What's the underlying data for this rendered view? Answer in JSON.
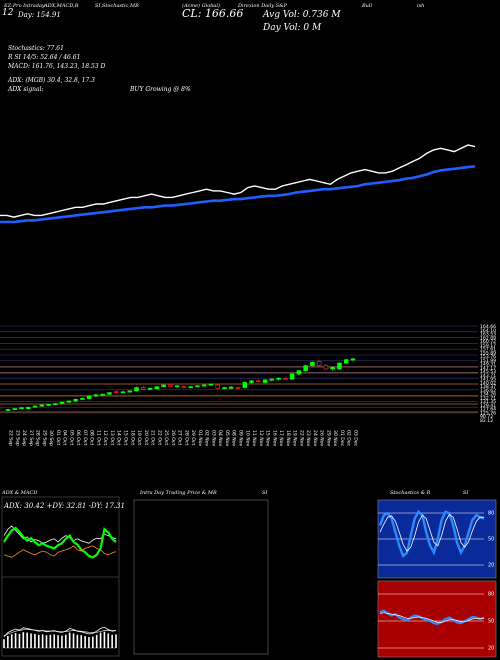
{
  "header": {
    "labels": [
      "EZ-Pro Intraday",
      "ADX,MACD,R",
      "SI,Stochastic,MR",
      "(Acme) Global)",
      "Direxion Daily S&P",
      "Bull",
      "ish"
    ],
    "day_range": "Day: 154.91",
    "close": "CL: 166.66",
    "avg_vol": "Avg Vol: 0.736  M",
    "day_vol": "Day Vol: 0   M",
    "pct": "12"
  },
  "indicators": {
    "stochastics": "Stochastics: 77.61",
    "rsi": "R          SI 14/5: 52.64 / 46.61",
    "macd": "MACD: 161.76, 143.23, 18.53 D",
    "adx": "ADX:                         (MGB) 30.4,  32.8,  17.3",
    "adx_signal_label": "ADX  signal:",
    "adx_signal": "BUY Growing @ 8%"
  },
  "colors": {
    "bull": "#00ff00",
    "bear": "#ff2020",
    "ma": "#1f5fff",
    "resistance": "#b36b28",
    "support": "#3a3a8a"
  },
  "chart_data": [
    {
      "type": "line",
      "name": "price-with-moving-average",
      "series": [
        {
          "name": "Price",
          "values": [
            107,
            107,
            106,
            107,
            108,
            107,
            107,
            108,
            109,
            110,
            111,
            112,
            112,
            113,
            114,
            114,
            115,
            116,
            117,
            118,
            118,
            119,
            120,
            119,
            118,
            118,
            119,
            120,
            121,
            122,
            123,
            122,
            122,
            121,
            120,
            121,
            124,
            125,
            124,
            123,
            123,
            125,
            126,
            127,
            128,
            129,
            128,
            127,
            126,
            129,
            131,
            133,
            134,
            135,
            134,
            133,
            133,
            134,
            136,
            138,
            140,
            142,
            145,
            147,
            148,
            147,
            146,
            148,
            150,
            149
          ]
        },
        {
          "name": "Moving Average",
          "values": [
            103.0,
            103.0,
            103.0,
            103.5,
            104.0,
            104.0,
            104.5,
            105.0,
            105.5,
            106.0,
            106.5,
            107.0,
            107.5,
            108.0,
            108.5,
            109.0,
            109.5,
            110.0,
            110.5,
            111.0,
            111.5,
            112.0,
            112.0,
            112.5,
            113.0,
            113.0,
            113.5,
            114.0,
            114.5,
            115.0,
            115.5,
            116.0,
            116.0,
            116.5,
            117.0,
            117.0,
            117.5,
            118.0,
            118.5,
            119.0,
            119.0,
            119.5,
            120.0,
            121.0,
            121.5,
            122.0,
            122.5,
            123.0,
            123.0,
            123.5,
            124.0,
            124.5,
            125.0,
            126.0,
            126.5,
            127.0,
            127.5,
            128.0,
            128.5,
            129.5,
            130.0,
            131.0,
            132.0,
            133.5,
            134.5,
            135.0,
            135.5,
            136.0,
            136.5,
            137.0
          ]
        }
      ]
    },
    {
      "type": "candlestick",
      "name": "daily-candles",
      "ylim": [
        125,
        176
      ],
      "x": [
        "22 Sep",
        "23 Sep",
        "24 Sep",
        "27 Sep",
        "28 Sep",
        "29 Sep",
        "30 Sep",
        "01 Oct",
        "04 Oct",
        "05 Oct",
        "06 Oct",
        "07 Oct",
        "08 Oct",
        "11 Oct",
        "12 Oct",
        "13 Oct",
        "14 Oct",
        "15 Oct",
        "18 Oct",
        "19 Oct",
        "20 Oct",
        "21 Oct",
        "22 Oct",
        "25 Oct",
        "26 Oct",
        "27 Oct",
        "28 Oct",
        "29 Oct",
        "01 Nov",
        "02 Nov",
        "03 Nov",
        "04 Nov",
        "05 Nov",
        "08 Nov",
        "09 Nov",
        "10 Nov",
        "11 Nov",
        "12 Nov",
        "15 Nov",
        "16 Nov",
        "17 Nov",
        "18 Nov",
        "19 Nov",
        "22 Nov",
        "23 Nov",
        "24 Nov",
        "26 Nov",
        "29 Nov",
        "30 Nov",
        "01 Dec",
        "02 Dec",
        "03 Dec"
      ],
      "tick_labels": [
        "164.66",
        "164.10",
        "163.53",
        "162.09",
        "160.72",
        "159.17",
        "157.61",
        "155.89",
        "153.76",
        "151.99",
        "149.31",
        "147.17",
        "145.53",
        "143.71",
        "141.95",
        "140.02",
        "138.37",
        "136.62",
        "134.26",
        "132.71",
        "131.35",
        "129.41",
        "127.64",
        "125.76",
        "90.72",
        "82.12"
      ],
      "candles": [
        [
          126.0,
          127.0,
          125.5,
          126.5
        ],
        [
          126.5,
          127.5,
          126.0,
          127.0
        ],
        [
          127.0,
          128.0,
          126.5,
          127.5
        ],
        [
          127.0,
          128.0,
          126.5,
          127.8
        ],
        [
          127.8,
          129.0,
          127.5,
          128.5
        ],
        [
          128.5,
          129.5,
          128.0,
          129.2
        ],
        [
          129.0,
          130.0,
          128.5,
          129.5
        ],
        [
          129.5,
          130.5,
          129.0,
          130.0
        ],
        [
          130.0,
          131.0,
          129.5,
          130.8
        ],
        [
          130.8,
          132.0,
          130.5,
          131.5
        ],
        [
          131.5,
          133.0,
          131.0,
          132.5
        ],
        [
          132.5,
          133.5,
          132.0,
          133.0
        ],
        [
          133.0,
          135.0,
          132.8,
          134.5
        ],
        [
          134.5,
          136.0,
          134.0,
          135.2
        ],
        [
          135.0,
          136.0,
          134.5,
          135.5
        ],
        [
          135.5,
          137.0,
          135.0,
          136.5
        ],
        [
          137.0,
          138.0,
          136.0,
          136.5
        ],
        [
          136.5,
          137.5,
          136.0,
          137.0
        ],
        [
          136.8,
          138.0,
          136.5,
          137.5
        ],
        [
          137.5,
          140.0,
          137.0,
          139.5
        ],
        [
          139.5,
          140.5,
          138.0,
          138.5
        ],
        [
          138.5,
          139.5,
          138.0,
          139.0
        ],
        [
          138.8,
          140.5,
          138.5,
          140.0
        ],
        [
          140.0,
          141.5,
          139.5,
          141.0
        ],
        [
          141.0,
          141.8,
          140.0,
          140.2
        ],
        [
          140.2,
          141.0,
          139.5,
          140.5
        ],
        [
          140.0,
          140.8,
          139.0,
          139.5
        ],
        [
          139.5,
          140.5,
          139.0,
          140.0
        ],
        [
          140.0,
          141.0,
          139.5,
          140.5
        ],
        [
          140.5,
          141.5,
          140.0,
          141.0
        ],
        [
          141.0,
          142.0,
          140.5,
          141.5
        ],
        [
          141.0,
          142.0,
          138.5,
          139.0
        ],
        [
          139.0,
          140.0,
          138.5,
          139.5
        ],
        [
          139.0,
          140.5,
          138.5,
          139.8
        ],
        [
          139.5,
          140.0,
          138.0,
          139.0
        ],
        [
          139.5,
          143.0,
          139.0,
          142.5
        ],
        [
          142.5,
          144.0,
          142.0,
          143.5
        ],
        [
          143.5,
          144.5,
          142.5,
          143.0
        ],
        [
          142.5,
          144.5,
          142.0,
          144.0
        ],
        [
          144.0,
          145.0,
          143.0,
          144.5
        ],
        [
          144.5,
          145.5,
          143.5,
          145.0
        ],
        [
          145.0,
          146.0,
          144.0,
          144.5
        ],
        [
          144.5,
          148.0,
          144.0,
          147.5
        ],
        [
          147.5,
          150.0,
          147.0,
          149.5
        ],
        [
          149.5,
          153.0,
          149.0,
          152.5
        ],
        [
          152.5,
          155.0,
          152.0,
          154.5
        ],
        [
          155.0,
          156.0,
          152.0,
          152.5
        ],
        [
          152.5,
          153.5,
          150.0,
          150.5
        ],
        [
          150.5,
          152.0,
          149.5,
          151.5
        ],
        [
          150.5,
          154.5,
          150.0,
          154.0
        ],
        [
          154.0,
          156.5,
          153.5,
          156.0
        ],
        [
          156.0,
          157.0,
          155.0,
          156.5
        ]
      ]
    },
    {
      "type": "line",
      "name": "adx-macd",
      "title": "ADX  & MACD",
      "label": "ADX: 30.42  +DY: 32.81 -DY: 17.31",
      "series": [
        {
          "name": "ADX",
          "values": [
            60,
            70,
            75,
            68,
            62,
            55,
            58,
            50,
            54,
            52,
            48,
            50,
            53,
            55,
            50,
            56,
            60,
            57,
            52,
            55,
            52,
            50,
            48,
            53,
            56,
            55,
            62,
            60,
            57,
            55
          ]
        },
        {
          "name": "+DY",
          "values": [
            50,
            60,
            68,
            72,
            66,
            58,
            52,
            56,
            50,
            45,
            48,
            44,
            42,
            40,
            45,
            48,
            55,
            60,
            50,
            46,
            38,
            34,
            28,
            26,
            30,
            40,
            70,
            65,
            55,
            50
          ]
        },
        {
          "name": "-DY",
          "values": [
            30,
            28,
            26,
            30,
            34,
            38,
            35,
            32,
            30,
            33,
            36,
            34,
            30,
            28,
            34,
            36,
            38,
            40,
            44,
            38,
            36,
            40,
            42,
            44,
            40,
            38,
            32,
            30,
            33,
            35
          ]
        },
        {
          "name": "MACD",
          "values": [
            40,
            55,
            62,
            68,
            64,
            72,
            70,
            66,
            64,
            60,
            62,
            58,
            60,
            62,
            58,
            56,
            60,
            70,
            66,
            60,
            58,
            54,
            50,
            52,
            60,
            70,
            74,
            66,
            60,
            62
          ]
        },
        {
          "name": "Signal",
          "values": [
            44,
            50,
            55,
            60,
            63,
            65,
            66,
            65,
            64,
            63,
            62,
            61,
            60,
            60,
            59,
            58,
            59,
            61,
            62,
            61,
            60,
            58,
            56,
            55,
            56,
            59,
            62,
            63,
            62,
            62
          ]
        }
      ]
    },
    {
      "type": "other",
      "name": "intraday-mrsi",
      "title": "Intra  Day Trading Price  & MR",
      "title_suffix": "SI"
    },
    {
      "type": "line",
      "name": "stochastics-rsi",
      "title": "Stochastics & R",
      "title_suffix": "SI",
      "stoch_ticks": [
        "80",
        "50",
        "20"
      ],
      "rsi_ticks": [
        "80",
        "50",
        "20"
      ],
      "stochastics": [
        {
          "name": "Stoch %K",
          "values": [
            70,
            85,
            88,
            80,
            60,
            40,
            25,
            30,
            55,
            80,
            90,
            85,
            60,
            40,
            30,
            50,
            78,
            90,
            88,
            70,
            45,
            30,
            40,
            60,
            78,
            85,
            82,
            80
          ]
        },
        {
          "name": "Stoch %D",
          "values": [
            60,
            72,
            82,
            84,
            76,
            60,
            42,
            32,
            38,
            55,
            75,
            85,
            80,
            62,
            45,
            40,
            55,
            76,
            86,
            82,
            65,
            45,
            38,
            46,
            62,
            76,
            82,
            82
          ]
        }
      ],
      "rsi": [
        {
          "name": "RSI",
          "values": [
            60,
            62,
            58,
            55,
            57,
            52,
            50,
            48,
            52,
            55,
            54,
            51,
            49,
            47,
            44,
            43,
            46,
            50,
            52,
            49,
            45,
            44,
            47,
            50,
            53,
            52,
            50,
            52
          ]
        },
        {
          "name": "RSI Signal",
          "values": [
            58,
            59,
            58,
            57,
            56,
            55,
            53,
            51,
            51,
            52,
            53,
            52,
            51,
            49,
            47,
            45,
            45,
            47,
            49,
            49,
            48,
            46,
            46,
            48,
            50,
            51,
            51,
            51
          ]
        }
      ]
    }
  ]
}
